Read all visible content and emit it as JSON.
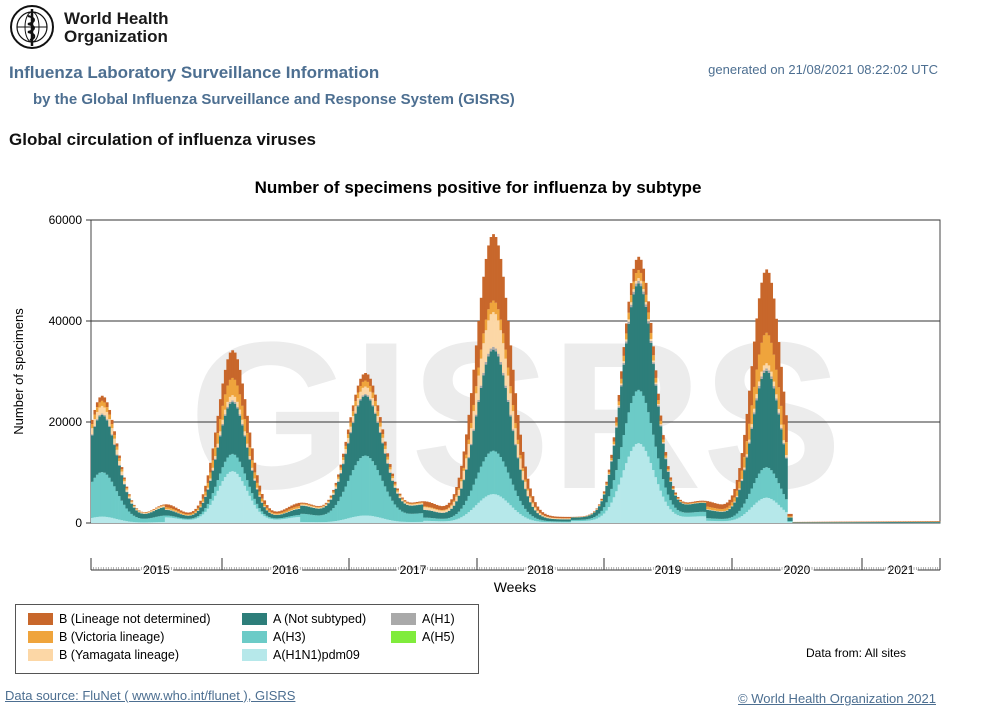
{
  "header": {
    "logo_text_line1": "World Health",
    "logo_text_line2": "Organization",
    "app_title": "Influenza Laboratory Surveillance Information",
    "app_subtitle": "by the Global Influenza Surveillance and Response System (GISRS)",
    "generated": "generated on 21/08/2021 08:22:02 UTC",
    "page_title": "Global circulation of influenza viruses"
  },
  "chart_data": {
    "type": "area",
    "stacked": true,
    "title": "Number of specimens positive for influenza by subtype",
    "xlabel": "Weeks",
    "ylabel": "Number of specimens",
    "ylim": [
      0,
      60000
    ],
    "yticks": [
      0,
      20000,
      40000,
      60000
    ],
    "grid": true,
    "watermark": "GISRS",
    "x_years": [
      "2015",
      "2016",
      "2017",
      "2018",
      "2019",
      "2020",
      "2021"
    ],
    "x_weeks_range": [
      "2015-W01",
      "2021-W33"
    ],
    "legend_position": "bottom-left",
    "series": [
      {
        "name": "A(H1N1)pdm09",
        "color": "#b6e8ea"
      },
      {
        "name": "A(H3",
        "color": "#6ccbc7"
      },
      {
        "name": "A(Not subtyped)",
        "color": "#2d7e7a"
      },
      {
        "name": "A(H1)",
        "color": "#a9a9a9"
      },
      {
        "name": "A(H5)",
        "color": "#80ec3c"
      },
      {
        "name": "B (Yamagata lineage)",
        "color": "#fcd7a6"
      },
      {
        "name": "B (Victoria lineage)",
        "color": "#efa43c"
      },
      {
        "name": "B (Lineage not determined)",
        "color": "#c8672b"
      }
    ],
    "peaks": [
      {
        "season": "2015 start",
        "week_index": 6,
        "total": 24500
      },
      {
        "season": "2016",
        "week_index": 57,
        "total": 34000
      },
      {
        "season": "2017",
        "week_index": 111,
        "total": 30000
      },
      {
        "season": "2018",
        "week_index": 163,
        "total": 58000
      },
      {
        "season": "2019",
        "week_index": 222,
        "total": 53000
      },
      {
        "season": "2020",
        "week_index": 274,
        "total": 51000
      }
    ]
  },
  "legend": {
    "items": [
      {
        "label": "B (Lineage not determined)",
        "color": "#c8672b"
      },
      {
        "label": "A (Not subtyped)",
        "color": "#2d7e7a"
      },
      {
        "label": "A(H1)",
        "color": "#a9a9a9"
      },
      {
        "label": "B (Victoria lineage)",
        "color": "#efa43c"
      },
      {
        "label": "A(H3)",
        "color": "#6ccbc7"
      },
      {
        "label": "A(H5)",
        "color": "#80ec3c"
      },
      {
        "label": "B (Yamagata lineage)",
        "color": "#fcd7a6"
      },
      {
        "label": "A(H1N1)pdm09",
        "color": "#b6e8ea"
      }
    ]
  },
  "footer": {
    "data_from": "Data from: All sites",
    "source_link": "Data source: FluNet ( www.who.int/flunet ), GISRS",
    "copyright": "© World Health Organization 2021"
  }
}
